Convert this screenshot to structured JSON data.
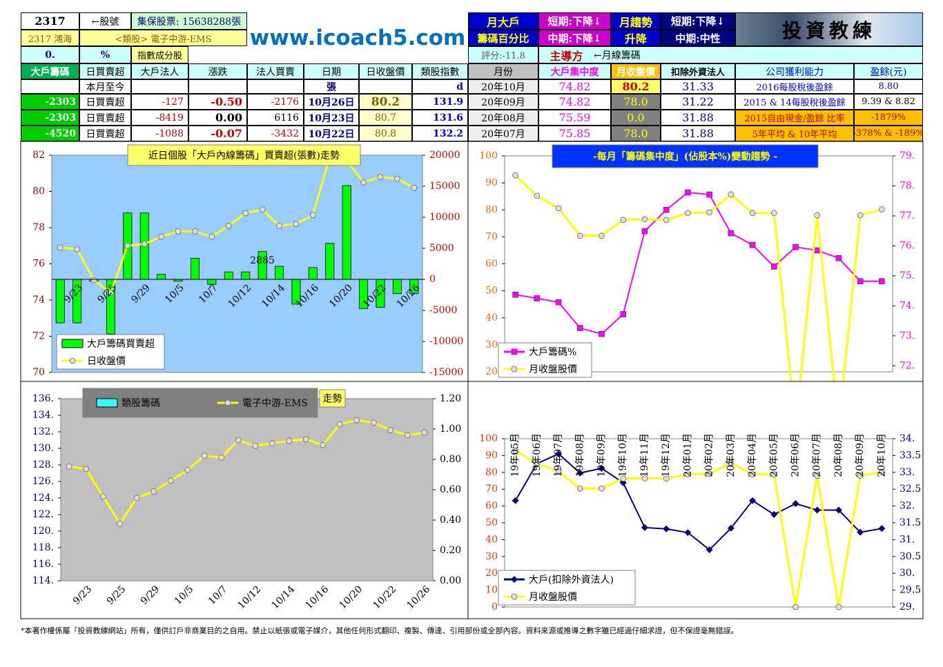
{
  "header": {
    "code": "2317",
    "code_label": "←股號",
    "shares": "集保股票: 15638288張",
    "name": "2317 鴻海",
    "sector": "<類股> 電子中游-EMS",
    "pct": "0.",
    "pct_unit": "%",
    "index_member": "指數成分股",
    "site": "www.icoach5.com",
    "big_holder": [
      "月大戶",
      "籌碼百分比"
    ],
    "big_trend": [
      "短期:下降↓",
      "中期:下降↓"
    ],
    "month_trend": [
      "月趨勢",
      "升降"
    ],
    "month_trend_value": [
      "短期:下降↓",
      "中期:中性"
    ],
    "logo": "投資教練",
    "score": "評分:-11.8",
    "leader": "主導方",
    "leader_note": "←月線籌碼"
  },
  "table": {
    "columns": [
      "大戶籌碼",
      "日買賣超",
      "大戶法人",
      "漲跌",
      "法人買賣",
      "日期",
      "日收盤價",
      "類股指數",
      "月份",
      "大戶集中度",
      "月收盤價",
      "扣除外資法人",
      "公司獲利能力",
      "盈餘(元)"
    ],
    "rows": [
      [
        null,
        "本月至今",
        null,
        null,
        null,
        "張",
        null,
        "d",
        "20年10月",
        "74.82",
        "80.2",
        "31.33",
        "2016每股稅後盈餘",
        "8.80"
      ],
      [
        "-2303",
        "日買賣超",
        "-127",
        "-0.50",
        "-2176",
        "10月26日",
        "80.2",
        "131.9",
        "20年09月",
        "74.82",
        "78.0",
        "31.22",
        "2015 & 14每股稅後盈餘",
        "9.39 & 8.82"
      ],
      [
        "-2303",
        "日買賣超",
        "-8419",
        "0.00",
        "6116",
        "10月23日",
        "80.7",
        "131.6",
        "20年08月",
        "75.59",
        "0.0",
        "31.88",
        "2015自由現金/盈餘 比率",
        "-1879%"
      ],
      [
        "-4520",
        "日買賣超",
        "-1088",
        "-0.07",
        "-3432",
        "10月22日",
        "80.8",
        "132.2",
        "20年07月",
        "75.85",
        "78.0",
        "31.88",
        "5年平均 & 10年平均",
        "-378% & -189%"
      ]
    ]
  },
  "chart_data": [
    {
      "type": "bar",
      "title": "近日個股「大戶內線籌碼」買賣超(張數)走勢",
      "annotation": "2885",
      "categories": [
        null,
        "9/23",
        null,
        "9/25",
        null,
        "9/29",
        null,
        "10/5",
        null,
        "10/7",
        null,
        "10/12",
        null,
        "10/14",
        null,
        "10/16",
        null,
        "10/20",
        null,
        "10/22",
        null,
        "10/26"
      ],
      "series": [
        {
          "name": "大戶籌碼買賣超",
          "type": "bar",
          "axis": "y2",
          "color": "#00ff00",
          "values": [
            -7000,
            -7000,
            -300,
            -8800,
            10700,
            10700,
            800,
            -300,
            3400,
            -800,
            1200,
            1200,
            4500,
            2100,
            -4000,
            1900,
            5800,
            15100,
            -4700,
            -4520,
            -2303,
            -2303
          ]
        },
        {
          "name": "日收盤價",
          "type": "line",
          "color": "#ffff00",
          "marker": "circle",
          "values": [
            76.9,
            76.8,
            75.1,
            74.4,
            77.0,
            77.1,
            77.5,
            77.8,
            77.8,
            77.5,
            78.1,
            78.8,
            79.0,
            78.1,
            78.2,
            78.7,
            81.9,
            81.7,
            80.5,
            80.8,
            80.7,
            80.2
          ]
        }
      ],
      "ylim": [
        70,
        82
      ],
      "yticks": [
        70,
        72,
        74,
        76,
        78,
        80,
        82
      ],
      "y2lim": [
        -15000,
        20000
      ],
      "y2ticks": [
        -15000,
        -10000,
        -5000,
        0,
        5000,
        10000,
        15000,
        20000
      ]
    },
    {
      "type": "line",
      "title": "-每月「籌碼集中度」(佔股本%)變動趨勢 -",
      "series": [
        {
          "name": "大戶籌碼%",
          "axis": "y2",
          "color": "#ff00ff",
          "marker": "square",
          "values": [
            74.37,
            74.25,
            74.12,
            73.26,
            73.06,
            73.72,
            76.49,
            77.2,
            77.78,
            77.71,
            76.42,
            76.03,
            75.31,
            75.96,
            75.85,
            75.59,
            74.82,
            74.82
          ]
        },
        {
          "name": "月收盤股價",
          "color": "#ffff00",
          "marker": "circle",
          "values": [
            92.8,
            85.2,
            80.6,
            70.4,
            70.4,
            76.3,
            76.5,
            76.3,
            78.8,
            79.1,
            85.7,
            78.8,
            78.8,
            0,
            78.0,
            0,
            78.0,
            80.2
          ]
        }
      ],
      "ylim": [
        20,
        100
      ],
      "yticks": [
        20,
        30,
        40,
        50,
        60,
        70,
        80,
        90,
        100
      ],
      "y2lim": [
        71.8,
        79
      ],
      "y2ticks": [
        {
          "value": 72,
          "label": "72."
        },
        {
          "value": 73,
          "label": "73."
        },
        {
          "value": 74,
          "label": "74."
        },
        {
          "value": 75,
          "label": "75."
        },
        {
          "value": 76,
          "label": "76."
        },
        {
          "value": 77,
          "label": "77."
        },
        {
          "value": 78,
          "label": "78."
        },
        {
          "value": 79,
          "label": "79."
        }
      ]
    },
    {
      "type": "line",
      "title": "走勢",
      "categories": [
        null,
        "9/23",
        null,
        "9/25",
        null,
        "9/29",
        null,
        "10/5",
        null,
        "10/7",
        null,
        "10/12",
        null,
        "10/14",
        null,
        "10/16",
        null,
        "10/20",
        null,
        "10/22",
        null,
        "10/26"
      ],
      "series": [
        {
          "name": "類股籌碼",
          "axis": "y2",
          "color": "#33ffff",
          "marker": "square",
          "values": [
            null,
            null,
            null,
            null,
            null,
            null,
            null,
            null,
            null,
            null,
            null,
            null,
            null,
            null,
            null,
            null,
            null,
            null,
            null,
            null,
            null,
            null
          ]
        },
        {
          "name": "電子中游-EMS",
          "color": "#ffff00",
          "marker": "circle",
          "values": [
            127.8,
            127.5,
            124.2,
            120.9,
            124.0,
            124.8,
            126.1,
            127.4,
            129.1,
            128.9,
            131.0,
            130.3,
            130.6,
            130.9,
            131.1,
            130.4,
            132.9,
            133.4,
            133.1,
            132.2,
            131.6,
            131.9
          ]
        }
      ],
      "ylim": [
        114,
        136
      ],
      "yticks": [
        {
          "value": 114,
          "label": "114."
        },
        {
          "value": 116,
          "label": "116."
        },
        {
          "value": 118,
          "label": "118."
        },
        {
          "value": 120,
          "label": "120."
        },
        {
          "value": 122,
          "label": "122."
        },
        {
          "value": 124,
          "label": "124."
        },
        {
          "value": 126,
          "label": "126."
        },
        {
          "value": 128,
          "label": "128."
        },
        {
          "value": 130,
          "label": "130."
        },
        {
          "value": 132,
          "label": "132."
        },
        {
          "value": 134,
          "label": "134."
        },
        {
          "value": 136,
          "label": "136."
        }
      ],
      "y2lim": [
        0,
        1.2
      ],
      "y2ticks": [
        {
          "value": 0,
          "label": "0.00"
        },
        {
          "value": 0.2,
          "label": "0.20"
        },
        {
          "value": 0.4,
          "label": "0.40"
        },
        {
          "value": 0.6,
          "label": "0.60"
        },
        {
          "value": 0.8,
          "label": "0.80"
        },
        {
          "value": 1,
          "label": "1.00"
        },
        {
          "value": 1.2,
          "label": "1.20"
        }
      ]
    },
    {
      "type": "line",
      "categories": [
        "19年05月",
        "19年06月",
        "19年07月",
        "19年08月",
        "19年09月",
        "19年10月",
        "19年11月",
        "19年12月",
        "20年01月",
        "20年02月",
        "20年03月",
        "20年04月",
        "20年05月",
        "20年06月",
        "20年07月",
        "20年08月",
        "20年09月",
        "20年10月"
      ],
      "series": [
        {
          "name": "大戶(扣除外資法人)",
          "axis": "y2",
          "color": "#000080",
          "marker": "diamond",
          "values": [
            32.16,
            33.26,
            33.55,
            32.98,
            33.12,
            32.69,
            31.36,
            31.32,
            31.21,
            30.7,
            31.34,
            32.16,
            31.75,
            32.07,
            31.88,
            31.88,
            31.22,
            31.33
          ]
        },
        {
          "name": "月收盤股價",
          "color": "#ffff00",
          "marker": "circle",
          "values": [
            92.8,
            85.2,
            80.6,
            70.4,
            70.4,
            76.3,
            76.5,
            76.3,
            78.8,
            79.1,
            85.7,
            78.8,
            78.8,
            0,
            78.0,
            0,
            78.0,
            80.2
          ]
        }
      ],
      "ylim": [
        0,
        100
      ],
      "yticks": [
        0,
        10,
        20,
        30,
        40,
        50,
        60,
        70,
        80,
        90,
        100
      ],
      "y2lim": [
        29,
        34
      ],
      "y2ticks": [
        {
          "value": 29,
          "label": "29."
        },
        29.5,
        {
          "value": 30,
          "label": "30."
        },
        30.5,
        {
          "value": 31,
          "label": "31."
        },
        31.5,
        {
          "value": 32,
          "label": "32."
        },
        32.5,
        {
          "value": 33,
          "label": "33."
        },
        33.5,
        {
          "value": 34,
          "label": "34."
        }
      ]
    }
  ],
  "footer": "*本著作權係屬「投資教練網站」所有，僅供訂戶非商業目的之自用。禁止以紙張或電子媒介，其他任何形式翻印、複製、傳達、引用部份或全部內容。資料來源或推導之數字雖已經過仔細求證，但不保證毫無錯誤。"
}
